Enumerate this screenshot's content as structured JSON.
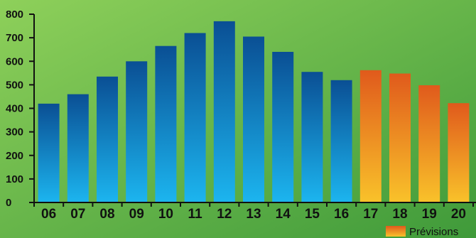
{
  "chart_data": {
    "type": "bar",
    "title": "",
    "xlabel": "",
    "ylabel": "",
    "categories": [
      "06",
      "07",
      "08",
      "09",
      "10",
      "11",
      "12",
      "13",
      "14",
      "15",
      "16",
      "17",
      "18",
      "19",
      "20"
    ],
    "series": [
      {
        "name": "",
        "values": [
          420,
          460,
          535,
          600,
          665,
          720,
          770,
          705,
          640,
          555,
          520,
          null,
          null,
          null,
          null
        ],
        "color_top": "#0a4f94",
        "color_bottom": "#1cb5ef"
      },
      {
        "name": "Prévisions",
        "values": [
          null,
          null,
          null,
          null,
          null,
          null,
          null,
          null,
          null,
          null,
          null,
          562,
          548,
          498,
          422
        ],
        "color_top": "#e05a1c",
        "color_bottom": "#f9c22a"
      }
    ],
    "ylim": [
      0,
      800
    ],
    "yticks": [
      0,
      100,
      200,
      300,
      400,
      500,
      600,
      700,
      800
    ],
    "grid": false,
    "legend_position": "bottom-right",
    "background": {
      "light": "#8ed05a",
      "dark": "#3f9a3a"
    },
    "axis_color": "#111111"
  }
}
